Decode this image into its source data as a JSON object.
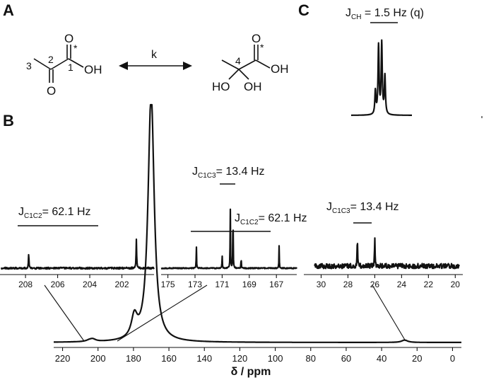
{
  "panels": {
    "a": "A",
    "b": "B",
    "c": "C"
  },
  "scheme": {
    "left_atoms": {
      "o_top": "O",
      "o_bottom": "O",
      "oh": "OH",
      "star": "*",
      "n1": "1",
      "n2": "2",
      "n3": "3"
    },
    "right_atoms": {
      "o_top": "O",
      "oh": "OH",
      "ho_left": "HO",
      "oh_bottom": "OH",
      "star": "*",
      "n4": "4"
    },
    "equilibrium_label": "k"
  },
  "couplings": {
    "c_ch": {
      "main": "J",
      "sub": "CH",
      "text": " = 1.5 Hz (q)"
    },
    "c1c2_left": {
      "main": "J",
      "sub": "C1C2",
      "text": "= 62.1 Hz"
    },
    "c1c3_mid": {
      "main": "J",
      "sub": "C1C3",
      "text": "= 13.4 Hz"
    },
    "c1c2_mid": {
      "main": "J",
      "sub": "C1C2",
      "text": "= 62.1 Hz"
    },
    "c1c3_right": {
      "main": "J",
      "sub": "C1C3",
      "text": "= 13.4 Hz"
    }
  },
  "chart_data": [
    {
      "type": "line",
      "name": "main_spectrum",
      "xlabel": "δ / ppm",
      "xlim": [
        225,
        -5
      ],
      "x_ticks": [
        220,
        200,
        180,
        160,
        140,
        120,
        100,
        80,
        60,
        40,
        20,
        0
      ],
      "peaks": [
        {
          "ppm": 205.0,
          "height": 0.005
        },
        {
          "ppm": 203.0,
          "height": 0.01
        },
        {
          "ppm": 179.5,
          "height": 0.09
        },
        {
          "ppm": 171.2,
          "height": 0.05
        },
        {
          "ppm": 170.0,
          "height": 1.0
        },
        {
          "ppm": 168.5,
          "height": 0.015
        },
        {
          "ppm": 27.0,
          "height": 0.01
        }
      ]
    },
    {
      "type": "line",
      "name": "inset_c2",
      "xlim": [
        209.5,
        200
      ],
      "x_ticks": [
        208,
        206,
        204,
        202
      ],
      "peaks": [
        {
          "ppm": 207.8,
          "height": 0.5
        },
        {
          "ppm": 201.1,
          "height": 1.0
        }
      ]
    },
    {
      "type": "line",
      "name": "inset_c1",
      "xlim": [
        175.5,
        165.5
      ],
      "x_ticks": [
        175,
        173,
        171,
        169,
        167
      ],
      "peaks": [
        {
          "ppm": 172.9,
          "height": 0.34
        },
        {
          "ppm": 171.0,
          "height": 0.2
        },
        {
          "ppm": 170.4,
          "height": 0.95
        },
        {
          "ppm": 170.2,
          "height": 0.95
        },
        {
          "ppm": 169.6,
          "height": 0.17
        },
        {
          "ppm": 166.8,
          "height": 0.35
        }
      ]
    },
    {
      "type": "line",
      "name": "inset_c3",
      "xlim": [
        30.5,
        19.7
      ],
      "x_ticks": [
        30,
        28,
        26,
        24,
        22,
        20
      ],
      "peaks": [
        {
          "ppm": 27.3,
          "height": 0.78
        },
        {
          "ppm": 26.0,
          "height": 0.82
        }
      ]
    },
    {
      "type": "line",
      "name": "inset_ch_quartet",
      "peaks": [
        {
          "offset": -1.5,
          "height": 0.28
        },
        {
          "offset": -0.5,
          "height": 0.82
        },
        {
          "offset": 0.5,
          "height": 0.85
        },
        {
          "offset": 1.5,
          "height": 0.46
        }
      ]
    }
  ]
}
